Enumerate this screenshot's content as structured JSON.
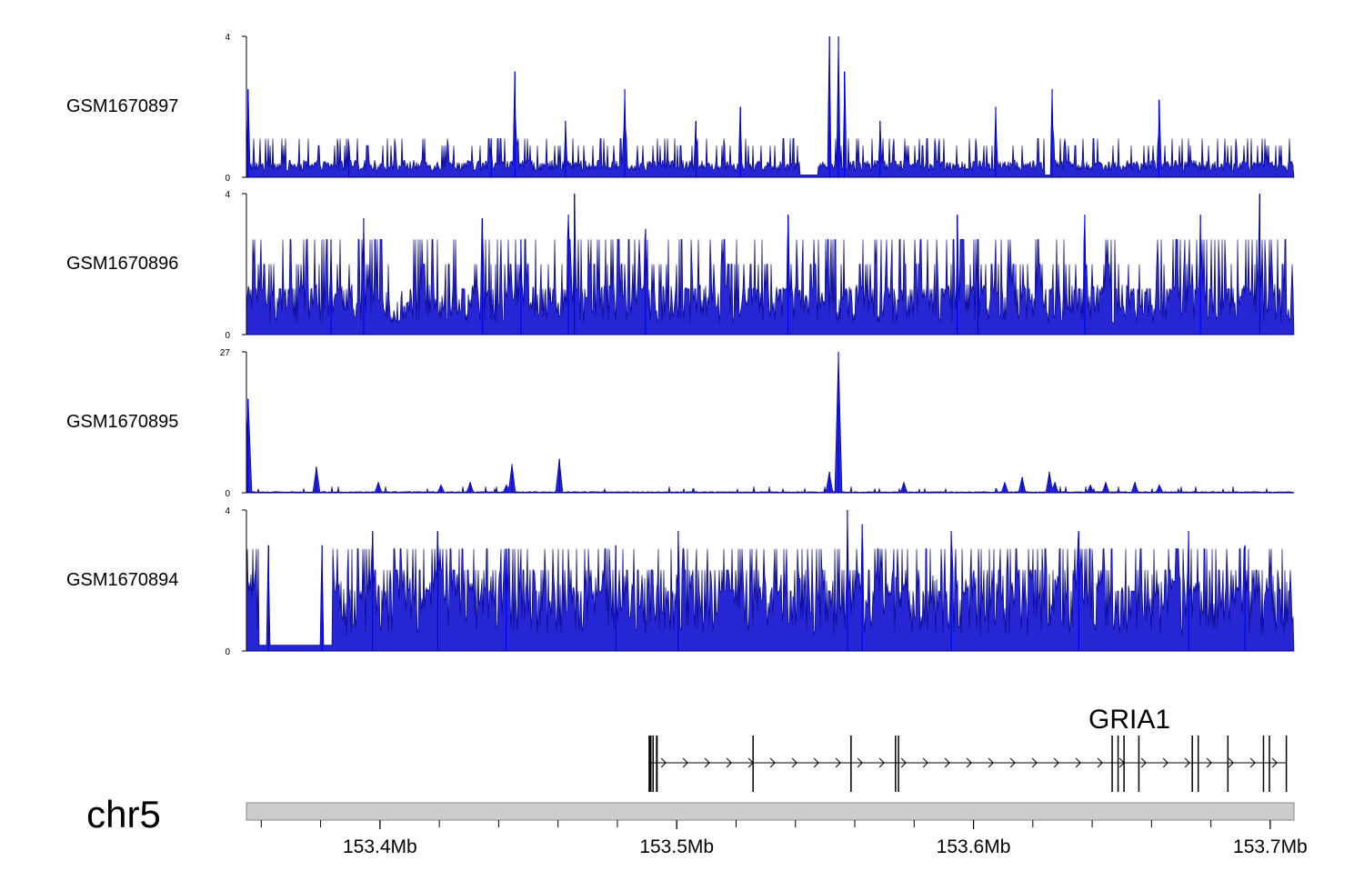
{
  "chart_data": {
    "type": "area",
    "chromosome": "chr5",
    "region_mb": [
      153.355,
      153.708
    ],
    "color": "#0000cc",
    "tracks": [
      {
        "name": "GSM1670897",
        "ylim": [
          0,
          4
        ],
        "baseline": 0.45,
        "noise": 0.35,
        "spike_rate": 0.16,
        "spike_values": [
          0.9,
          1.1
        ],
        "peaks": [
          {
            "pos": 153.3555,
            "value": 2.5
          },
          {
            "pos": 153.3555,
            "value": 2.1
          },
          {
            "pos": 153.3895,
            "value": 0.9
          },
          {
            "pos": 153.4375,
            "value": 1.1
          },
          {
            "pos": 153.4455,
            "value": 3.0
          },
          {
            "pos": 153.4625,
            "value": 1.6
          },
          {
            "pos": 153.4825,
            "value": 2.5
          },
          {
            "pos": 153.5065,
            "value": 1.6
          },
          {
            "pos": 153.5215,
            "value": 2.0
          },
          {
            "pos": 153.5515,
            "value": 4.0
          },
          {
            "pos": 153.5545,
            "value": 4.0
          },
          {
            "pos": 153.5565,
            "value": 3.0
          },
          {
            "pos": 153.5685,
            "value": 1.6
          },
          {
            "pos": 153.6075,
            "value": 2.0
          },
          {
            "pos": 153.6265,
            "value": 2.5
          },
          {
            "pos": 153.6625,
            "value": 2.2
          }
        ],
        "gaps": [
          [
            153.5415,
            153.5475
          ],
          [
            153.624,
            153.627
          ]
        ]
      },
      {
        "name": "GSM1670896",
        "ylim": [
          0,
          4
        ],
        "baseline": 0.8,
        "noise": 0.7,
        "spike_rate": 0.45,
        "spike_values": [
          1.3,
          2.0,
          2.7
        ],
        "peaks": [
          {
            "pos": 153.3835,
            "value": 2.7
          },
          {
            "pos": 153.3945,
            "value": 3.3
          },
          {
            "pos": 153.4345,
            "value": 3.3
          },
          {
            "pos": 153.4475,
            "value": 2.7
          },
          {
            "pos": 153.4635,
            "value": 3.4
          },
          {
            "pos": 153.4655,
            "value": 4.0
          },
          {
            "pos": 153.4895,
            "value": 3.0
          },
          {
            "pos": 153.5375,
            "value": 3.4
          },
          {
            "pos": 153.5945,
            "value": 3.4
          },
          {
            "pos": 153.6015,
            "value": 2.7
          },
          {
            "pos": 153.6375,
            "value": 3.4
          },
          {
            "pos": 153.6765,
            "value": 3.4
          },
          {
            "pos": 153.6965,
            "value": 4.0
          }
        ],
        "gaps": []
      },
      {
        "name": "GSM1670895",
        "ylim": [
          0,
          27
        ],
        "baseline": 0.2,
        "noise": 0.4,
        "spike_rate": 0.05,
        "spike_values": [
          0.8,
          1.2
        ],
        "peaks": [
          {
            "pos": 153.3555,
            "value": 18
          },
          {
            "pos": 153.3785,
            "value": 5
          },
          {
            "pos": 153.3995,
            "value": 2
          },
          {
            "pos": 153.4205,
            "value": 1.5
          },
          {
            "pos": 153.4305,
            "value": 2
          },
          {
            "pos": 153.4425,
            "value": 1.5
          },
          {
            "pos": 153.4445,
            "value": 5.5
          },
          {
            "pos": 153.4605,
            "value": 6.5
          },
          {
            "pos": 153.5515,
            "value": 4
          },
          {
            "pos": 153.5545,
            "value": 27
          },
          {
            "pos": 153.5765,
            "value": 2
          },
          {
            "pos": 153.6105,
            "value": 2
          },
          {
            "pos": 153.6165,
            "value": 3
          },
          {
            "pos": 153.6255,
            "value": 4
          },
          {
            "pos": 153.6275,
            "value": 2
          },
          {
            "pos": 153.6395,
            "value": 1.5
          },
          {
            "pos": 153.6445,
            "value": 2
          },
          {
            "pos": 153.6545,
            "value": 2
          },
          {
            "pos": 153.6625,
            "value": 1.5
          }
        ],
        "gaps": []
      },
      {
        "name": "GSM1670894",
        "ylim": [
          0,
          4
        ],
        "baseline": 1.1,
        "noise": 0.8,
        "spike_rate": 0.48,
        "spike_values": [
          1.7,
          2.3,
          2.9
        ],
        "peaks": [
          {
            "pos": 153.3625,
            "value": 3.0
          },
          {
            "pos": 153.3805,
            "value": 3.0
          },
          {
            "pos": 153.3975,
            "value": 3.4
          },
          {
            "pos": 153.4195,
            "value": 3.4
          },
          {
            "pos": 153.4425,
            "value": 2.9
          },
          {
            "pos": 153.4795,
            "value": 3.0
          },
          {
            "pos": 153.5005,
            "value": 3.4
          },
          {
            "pos": 153.5575,
            "value": 4.0
          },
          {
            "pos": 153.5625,
            "value": 3.6
          },
          {
            "pos": 153.5925,
            "value": 3.4
          },
          {
            "pos": 153.6355,
            "value": 3.4
          },
          {
            "pos": 153.6725,
            "value": 3.4
          },
          {
            "pos": 153.6915,
            "value": 3.0
          }
        ],
        "gaps": [
          [
            153.359,
            153.384
          ]
        ]
      }
    ],
    "gene": {
      "name": "GRIA1",
      "strand": "+",
      "start": 153.4905,
      "end": 153.7055,
      "exons": [
        {
          "start": 153.4905,
          "end": 153.4915
        },
        {
          "start": 153.4918,
          "end": 153.4922
        },
        {
          "start": 153.493,
          "end": 153.4936
        },
        {
          "start": 153.5255,
          "end": 153.5259
        },
        {
          "start": 153.5585,
          "end": 153.5589
        },
        {
          "start": 153.5735,
          "end": 153.5738
        },
        {
          "start": 153.5745,
          "end": 153.5748
        },
        {
          "start": 153.6465,
          "end": 153.6469
        },
        {
          "start": 153.6485,
          "end": 153.6489
        },
        {
          "start": 153.6505,
          "end": 153.6509
        },
        {
          "start": 153.6555,
          "end": 153.6559
        },
        {
          "start": 153.6735,
          "end": 153.6739
        },
        {
          "start": 153.6755,
          "end": 153.6759
        },
        {
          "start": 153.6855,
          "end": 153.6859
        },
        {
          "start": 153.6975,
          "end": 153.6979
        },
        {
          "start": 153.6995,
          "end": 153.6999
        },
        {
          "start": 153.7052,
          "end": 153.7056
        }
      ]
    },
    "genome_axis": {
      "major_ticks": [
        153.4,
        153.5,
        153.6,
        153.7
      ],
      "major_labels": [
        "153.4Mb",
        "153.5Mb",
        "153.6Mb",
        "153.7Mb"
      ],
      "minor_tick_step": 0.02
    }
  }
}
